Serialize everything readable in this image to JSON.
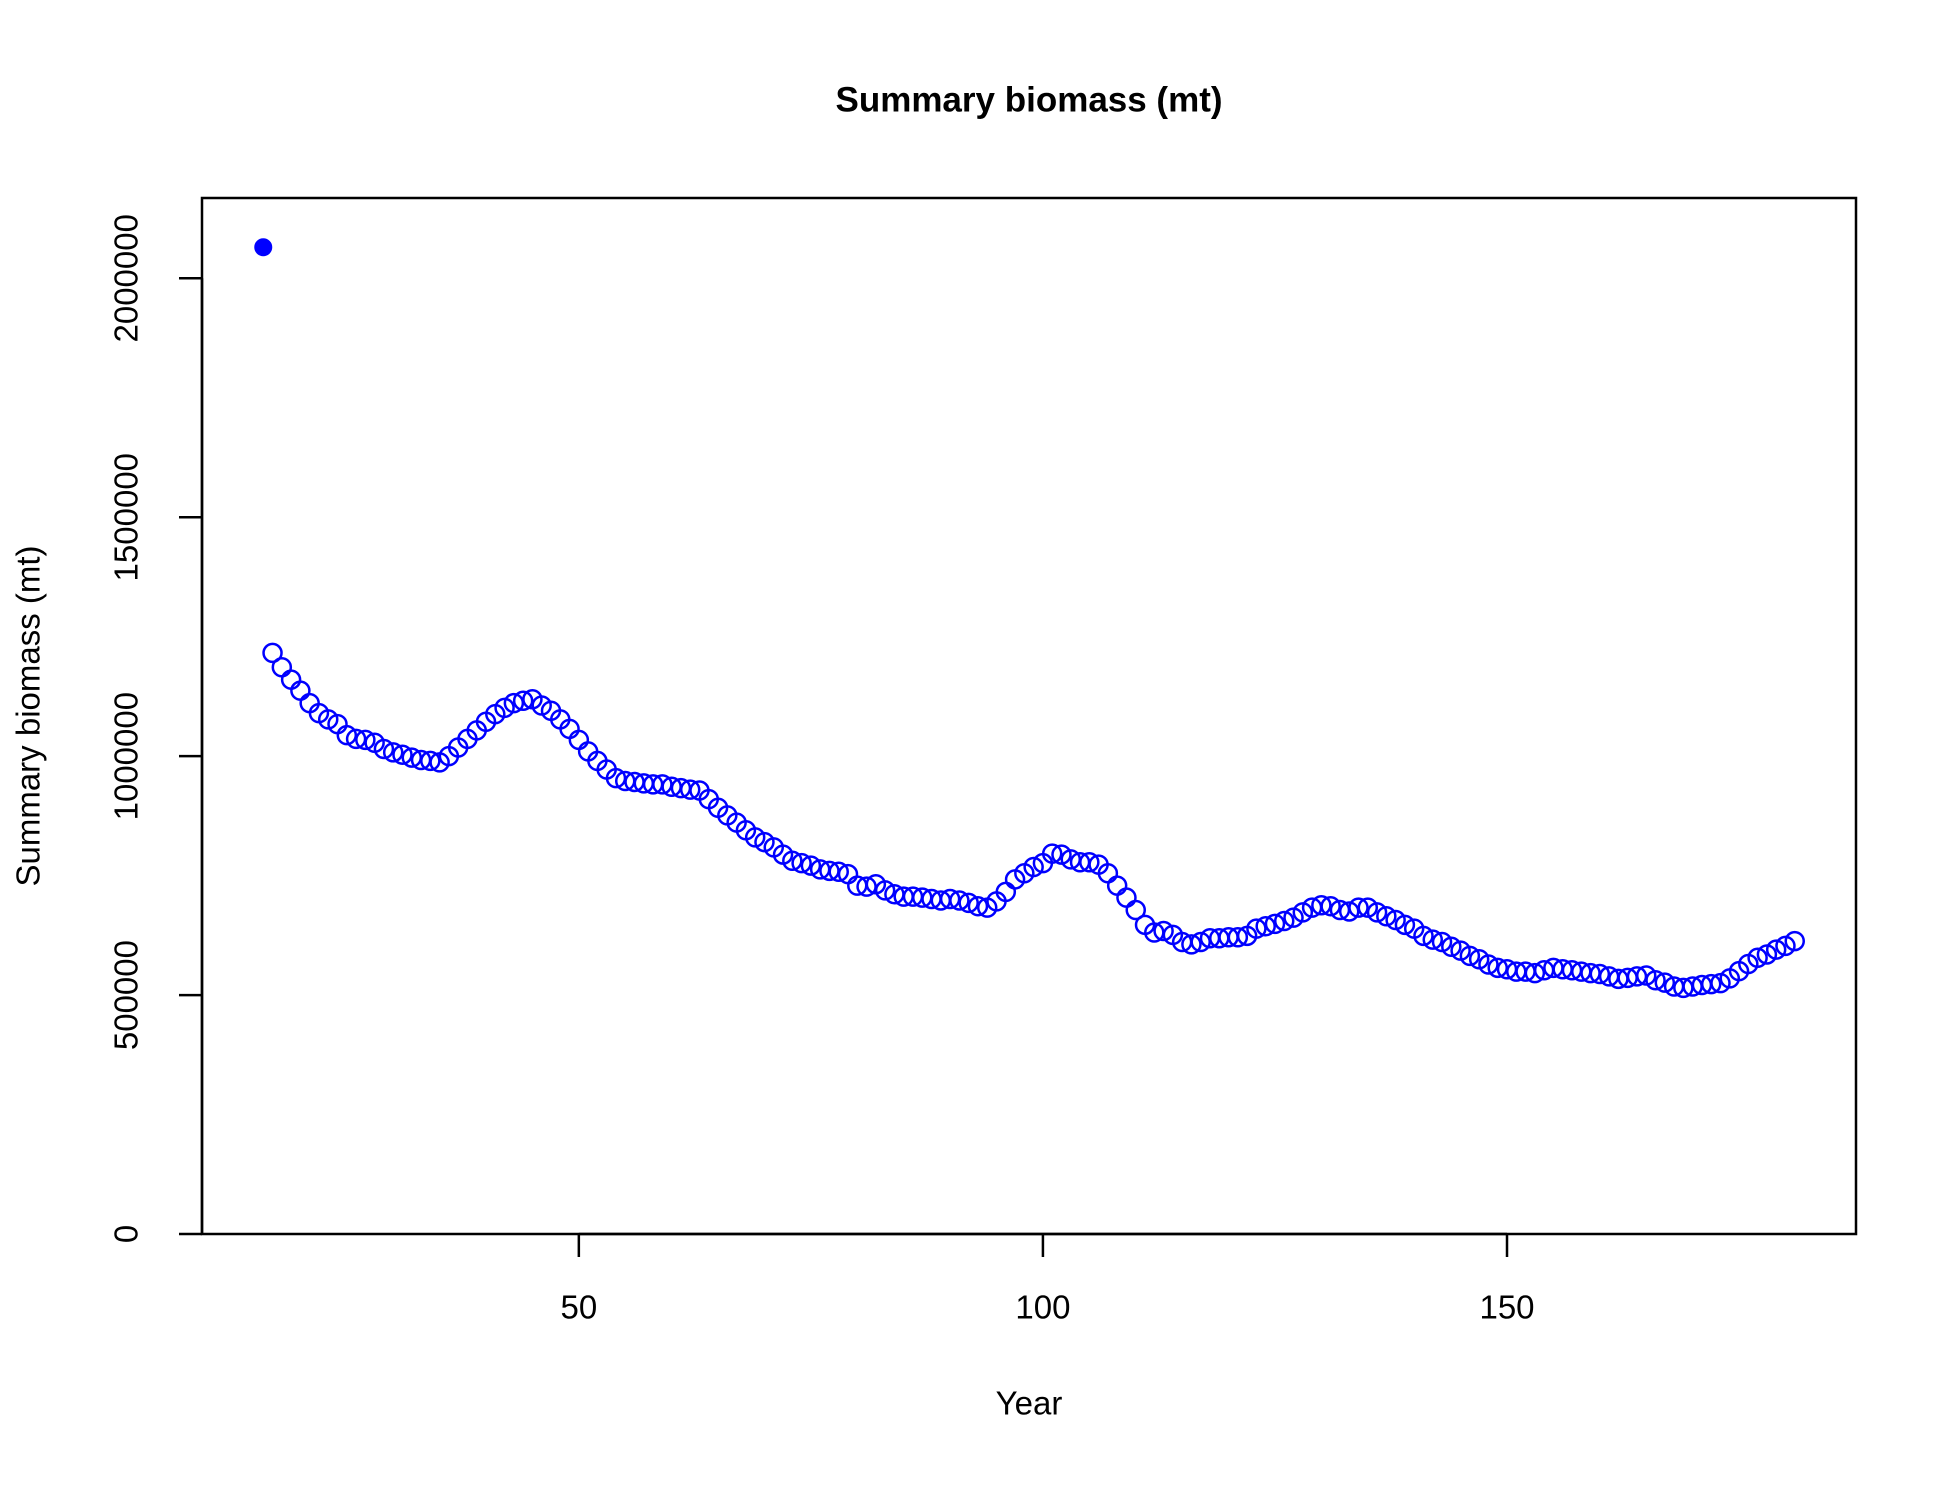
{
  "chart_data": {
    "type": "scatter",
    "title": "Summary biomass (mt)",
    "xlabel": "Year",
    "ylabel": "Summary biomass (mt)",
    "xlim": [
      9.4,
      187.6
    ],
    "ylim": [
      0,
      2168000
    ],
    "xticks": [
      50,
      100,
      150
    ],
    "yticks": [
      0,
      500000,
      1000000,
      1500000,
      2000000
    ],
    "series": [
      {
        "color": "#0000ff",
        "marker": "filled",
        "x": [
          16
        ],
        "values": [
          2065000
        ]
      },
      {
        "color": "#0000ff",
        "marker": "open",
        "x": [
          17,
          18,
          19,
          20,
          21,
          22,
          23,
          24,
          25,
          26,
          27,
          28,
          29,
          30,
          31,
          32,
          33,
          34,
          35,
          36,
          37,
          38,
          39,
          40,
          41,
          42,
          43,
          44,
          45,
          46,
          47,
          48,
          49,
          50,
          51,
          52,
          53,
          54,
          55,
          56,
          57,
          58,
          59,
          60,
          61,
          62,
          63,
          64,
          65,
          66,
          67,
          68,
          69,
          70,
          71,
          72,
          73,
          74,
          75,
          76,
          77,
          78,
          79,
          80,
          81,
          82,
          83,
          84,
          85,
          86,
          87,
          88,
          89,
          90,
          91,
          92,
          93,
          94,
          95,
          96,
          97,
          98,
          99,
          100,
          101,
          102,
          103,
          104,
          105,
          106,
          107,
          108,
          109,
          110,
          111,
          112,
          113,
          114,
          115,
          116,
          117,
          118,
          119,
          120,
          121,
          122,
          123,
          124,
          125,
          126,
          127,
          128,
          129,
          130,
          131,
          132,
          133,
          134,
          135,
          136,
          137,
          138,
          139,
          140,
          141,
          142,
          143,
          144,
          145,
          146,
          147,
          148,
          149,
          150,
          151,
          152,
          153,
          154,
          155,
          156,
          157,
          158,
          159,
          160,
          161,
          162,
          163,
          164,
          165,
          166,
          167,
          168,
          169,
          170,
          171,
          172,
          173,
          174,
          175,
          176,
          177,
          178,
          179,
          180,
          181
        ],
        "values": [
          1216000,
          1186000,
          1160000,
          1137000,
          1111000,
          1090000,
          1077000,
          1067000,
          1044000,
          1036000,
          1034000,
          1028000,
          1015000,
          1008000,
          1003000,
          997000,
          992000,
          990000,
          987000,
          1000000,
          1018000,
          1036000,
          1054000,
          1072000,
          1088000,
          1101000,
          1111000,
          1116000,
          1119000,
          1106000,
          1095000,
          1077000,
          1057000,
          1034000,
          1010000,
          990000,
          972000,
          954000,
          948000,
          946000,
          943000,
          941000,
          941000,
          936000,
          933000,
          930000,
          928000,
          910000,
          892000,
          876000,
          861000,
          845000,
          830000,
          820000,
          809000,
          794000,
          781000,
          776000,
          771000,
          763000,
          760000,
          758000,
          753000,
          729000,
          727000,
          732000,
          719000,
          711000,
          706000,
          706000,
          704000,
          701000,
          698000,
          701000,
          698000,
          693000,
          686000,
          683000,
          696000,
          716000,
          742000,
          755000,
          768000,
          776000,
          796000,
          794000,
          784000,
          778000,
          778000,
          773000,
          755000,
          729000,
          704000,
          678000,
          647000,
          631000,
          634000,
          626000,
          611000,
          606000,
          611000,
          619000,
          619000,
          621000,
          621000,
          624000,
          639000,
          644000,
          649000,
          655000,
          662000,
          673000,
          683000,
          688000,
          686000,
          678000,
          675000,
          683000,
          683000,
          673000,
          665000,
          657000,
          647000,
          639000,
          624000,
          616000,
          611000,
          601000,
          593000,
          582000,
          575000,
          564000,
          557000,
          554000,
          549000,
          549000,
          546000,
          552000,
          557000,
          554000,
          552000,
          549000,
          546000,
          544000,
          539000,
          534000,
          536000,
          539000,
          541000,
          531000,
          526000,
          518000,
          515000,
          518000,
          521000,
          523000,
          525000,
          535000,
          550000,
          565000,
          578000,
          585000,
          595000,
          603000,
          613000
        ]
      }
    ]
  }
}
